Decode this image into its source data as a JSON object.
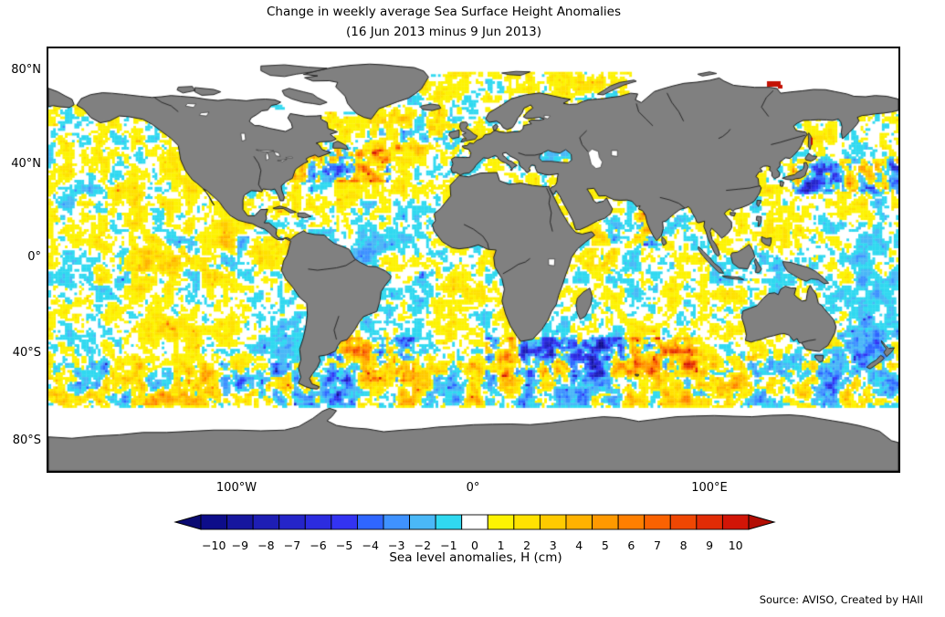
{
  "title": {
    "line1": "Change in weekly average Sea Surface Height Anomalies",
    "line2": "(16 Jun 2013 minus 9 Jun 2013)"
  },
  "axes": {
    "y_ticks": [
      {
        "label": "80°N"
      },
      {
        "label": "40°N"
      },
      {
        "label": "0°"
      },
      {
        "label": "40°S"
      },
      {
        "label": "80°S"
      }
    ],
    "x_ticks": [
      {
        "label": "100°W"
      },
      {
        "label": "0°"
      },
      {
        "label": "100°E"
      }
    ]
  },
  "colorbar": {
    "label": "Sea level anomalies, H (cm)",
    "tick_labels": [
      "−10",
      "−9",
      "−8",
      "−7",
      "−6",
      "−5",
      "−4",
      "−3",
      "−2",
      "−1",
      "0",
      "1",
      "2",
      "3",
      "4",
      "5",
      "6",
      "7",
      "8",
      "9",
      "10"
    ],
    "segment_colors": [
      "#0d0d8a",
      "#16169e",
      "#1e1eb4",
      "#2525c9",
      "#2c2cdf",
      "#3333f2",
      "#2f66ff",
      "#3f92ff",
      "#4ab8f7",
      "#30d9f0",
      "#ffffff",
      "#fdf303",
      "#ffe201",
      "#ffca00",
      "#ffb200",
      "#ff9900",
      "#ff7f00",
      "#fa6201",
      "#ef4703",
      "#e12c05",
      "#d21507"
    ],
    "left_arrow_color": "#0a0a72",
    "right_arrow_color": "#b30e04"
  },
  "map": {
    "land_color": "#808080",
    "coast_color": "#1b1b1b",
    "no_data_color": "#ffffff",
    "frame_color": "#000000",
    "artifact_color": "#c41104"
  },
  "source_note": "Source: AVISO, Created by HAII",
  "chart_data": {
    "type": "heatmap",
    "title": "Change in weekly average Sea Surface Height Anomalies",
    "subtitle": "(16 Jun 2013 minus 9 Jun 2013)",
    "projection": "equirectangular world map",
    "x_axis": {
      "tick_labels": [
        "100°W",
        "0°",
        "100°E"
      ],
      "tick_values_deg_lon": [
        -100,
        0,
        100
      ],
      "range_deg_lon": [
        -180,
        180
      ]
    },
    "y_axis": {
      "tick_labels": [
        "80°N",
        "40°N",
        "0°",
        "40°S",
        "80°S"
      ],
      "tick_values_deg_lat": [
        80,
        40,
        0,
        -40,
        -80
      ],
      "range_deg_lat": [
        -90,
        90
      ]
    },
    "colorbar": {
      "label": "Sea level anomalies, H (cm)",
      "tick_values": [
        -10,
        -9,
        -8,
        -7,
        -6,
        -5,
        -4,
        -3,
        -2,
        -1,
        0,
        1,
        2,
        3,
        4,
        5,
        6,
        7,
        8,
        9,
        10
      ],
      "units": "cm",
      "arrow_extensions": true
    },
    "value_range_cm": [
      -10,
      10
    ],
    "land_color": "#808080",
    "no_data_color": "#ffffff",
    "data_coverage_lat_range": [
      -63,
      80
    ],
    "notable_features": [
      "Speckled weekly SSH anomaly difference field over all oceans, mostly ±1–3 cm (yellow/cyan)",
      "High-variability eddy regions with ±5–10 cm values: Gulf Stream (NW Atlantic), Kuroshio (NW Pacific), Agulhas retroflection / S Indian Ocean, Brazil–Malvinas confluence, Antarctic Circumpolar Current",
      "White band of no data south of ~63°S around Antarctica; no data in Hudson Bay, Baffin Bay, Caspian Sea and central Arctic",
      "Small solid dark-red data artifact on the Siberian Arctic coast near 128°E, 76°N"
    ]
  }
}
